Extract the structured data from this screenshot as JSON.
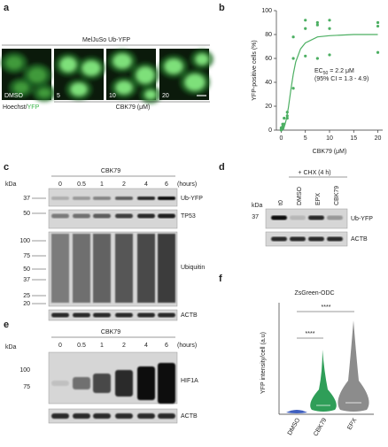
{
  "chart_data": {
    "type": "scatter",
    "panel_label": "b",
    "xlabel": "CBK79 (μM)",
    "ylabel": "YFP-positive cells (%)",
    "annotation": {
      "prefix": "EC",
      "sub": "50",
      "rest": " = 2.2 μM",
      "ci": "(95% CI = 1.3 - 4.9)"
    },
    "xlim": [
      -1,
      21
    ],
    "ylim": [
      0,
      100
    ],
    "xticks": [
      0,
      5,
      10,
      15,
      20
    ],
    "yticks": [
      0,
      20,
      40,
      60,
      80,
      100
    ],
    "color": "#4caf62",
    "x": [
      0,
      0,
      0,
      0.3,
      0.3,
      0.3,
      0.6,
      0.6,
      1.25,
      1.25,
      1.25,
      2.5,
      2.5,
      2.5,
      5,
      5,
      5,
      7.5,
      7.5,
      7.5,
      10,
      10,
      10,
      20,
      20,
      20
    ],
    "values": [
      0,
      1,
      2,
      2,
      3,
      5,
      5,
      10,
      10,
      15,
      12,
      35,
      60,
      78,
      92,
      85,
      62,
      90,
      88,
      60,
      92,
      85,
      63,
      90,
      87,
      65
    ],
    "fit": {
      "x": [
        0,
        0.5,
        1,
        1.5,
        2,
        2.5,
        3,
        4,
        5,
        7.5,
        10,
        15,
        20
      ],
      "values": [
        0,
        1,
        8,
        19,
        34,
        47,
        57,
        68,
        73,
        78,
        79,
        80,
        80
      ]
    }
  },
  "panels": {
    "a": {
      "label": "a",
      "title": "MelJuSo Ub-YFP",
      "images": [
        "DMSO",
        "5",
        "10",
        "20"
      ],
      "stain_a": "Hoechst/",
      "stain_b": "YFP",
      "axis": "CBK79 (μM)"
    },
    "c": {
      "label": "c",
      "treatment": "CBK79",
      "kda": "kDa",
      "times": [
        "0",
        "0.5",
        "1",
        "2",
        "4",
        "6"
      ],
      "unit": "(hours)",
      "markers": [
        "37",
        "50",
        "100",
        "75",
        "50",
        "37",
        "25",
        "20"
      ],
      "bands": [
        "Ub-YFP",
        "TP53",
        "Ubiquitin",
        "ACTB"
      ]
    },
    "d": {
      "label": "d",
      "treatment": "+ CHX (4 h)",
      "kda": "kDa",
      "lanes": [
        "t0",
        "DMSO",
        "EPX",
        "CBK79"
      ],
      "markers": [
        "37"
      ],
      "bands": [
        "Ub-YFP",
        "ACTB"
      ]
    },
    "e": {
      "label": "e",
      "treatment": "CBK79",
      "kda": "kDa",
      "times": [
        "0",
        "0.5",
        "1",
        "2",
        "4",
        "6"
      ],
      "unit": "(hours)",
      "markers": [
        "100",
        "75"
      ],
      "bands": [
        "HIF1A",
        "ACTB"
      ]
    },
    "f": {
      "label": "f",
      "title": "ZsGreen-ODC",
      "ylabel": "YFP intensity/cell (a.u)",
      "categories": [
        "DMSO",
        "CBK79",
        "EPX"
      ],
      "sig": [
        "****",
        "****"
      ]
    }
  }
}
